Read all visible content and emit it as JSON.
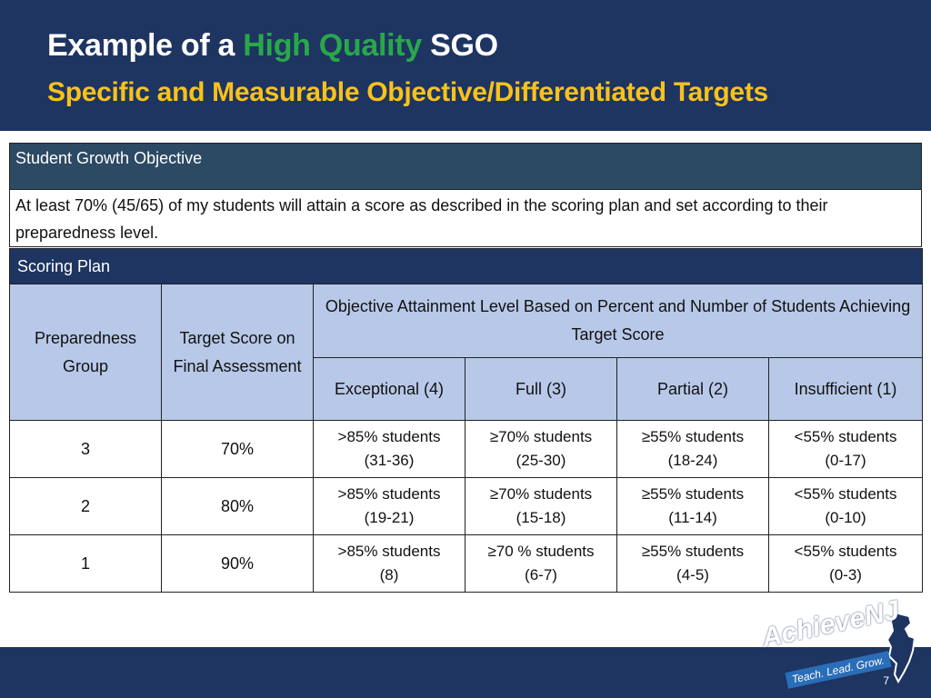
{
  "header": {
    "title_prefix": "Example of a ",
    "title_highlight": "High Quality",
    "title_suffix": " SGO",
    "subtitle": "Specific and Measurable Objective/Differentiated Targets"
  },
  "sgo": {
    "heading": "Student Growth Objective",
    "text": "At least 70% (45/65) of my students will attain a score as described in the scoring plan and set according to their preparedness level."
  },
  "scoring_plan": {
    "heading": "Scoring Plan",
    "col_group": "Preparedness Group",
    "col_target": "Target Score on Final Assessment",
    "col_objective": "Objective Attainment Level Based on Percent and Number of Students Achieving Target Score",
    "levels": [
      "Exceptional (4)",
      "Full (3)",
      "Partial (2)",
      "Insufficient (1)"
    ],
    "rows": [
      {
        "group": "3",
        "target": "70%",
        "cells": [
          {
            "pct": ">85% students",
            "range": "(31-36)"
          },
          {
            "pct": "≥70%  students",
            "range": "(25-30)"
          },
          {
            "pct": "≥55% students",
            "range": "(18-24)"
          },
          {
            "pct": "<55% students",
            "range": "(0-17)"
          }
        ]
      },
      {
        "group": "2",
        "target": "80%",
        "cells": [
          {
            "pct": ">85% students",
            "range": "(19-21)"
          },
          {
            "pct": "≥70% students",
            "range": "(15-18)"
          },
          {
            "pct": "≥55% students",
            "range": "(11-14)"
          },
          {
            "pct": "<55% students",
            "range": "(0-10)"
          }
        ]
      },
      {
        "group": "1",
        "target": "90%",
        "cells": [
          {
            "pct": ">85% students",
            "range": "(8)"
          },
          {
            "pct": "≥70 % students",
            "range": "(6-7)"
          },
          {
            "pct": "≥55% students",
            "range": "(4-5)"
          },
          {
            "pct": "<55% students",
            "range": "(0-3)"
          }
        ]
      }
    ]
  },
  "footer": {
    "logo_main": "Achieve",
    "logo_nj": "NJ",
    "logo_tagline": "Teach. Lead. Grow.",
    "page_number": "7"
  },
  "colors": {
    "navy": "#1e3461",
    "highlight_green": "#29a84a",
    "subtitle_yellow": "#f7c21c",
    "header_cell_blue": "#b8c8e8",
    "sgo_head": "#2c4a63"
  }
}
